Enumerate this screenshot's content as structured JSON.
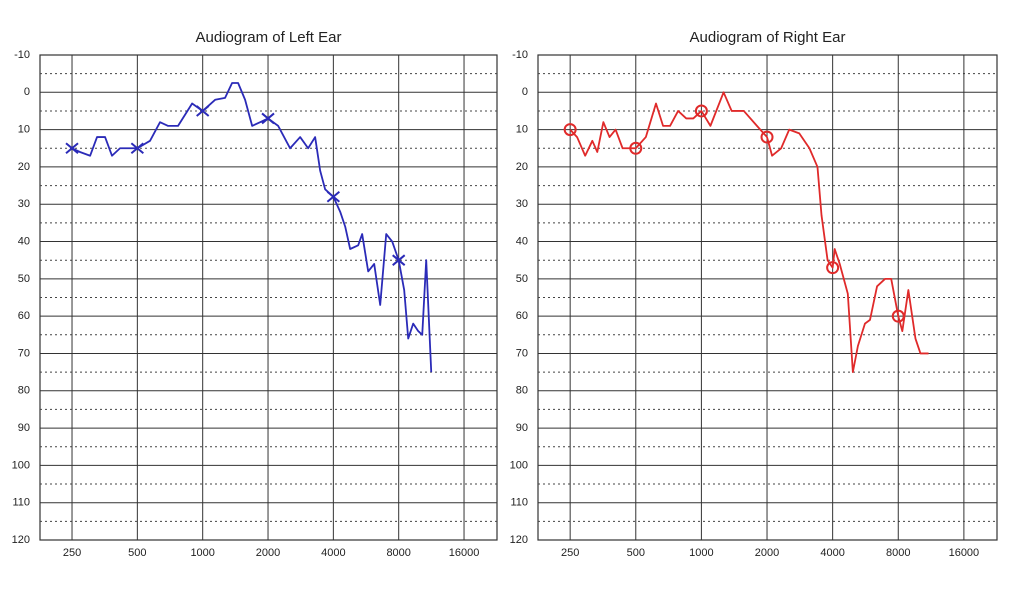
{
  "chart_data": [
    {
      "type": "line",
      "title": "Audiogram of Left Ear",
      "xscale": "log",
      "grid": true,
      "xlim": [
        178,
        22700
      ],
      "ylim": [
        120,
        -10
      ],
      "xticks": [
        250,
        500,
        1000,
        2000,
        4000,
        8000,
        16000
      ],
      "yticks": [
        -10,
        0,
        10,
        20,
        30,
        40,
        50,
        60,
        70,
        80,
        90,
        100,
        110,
        120
      ],
      "yminorticks": [
        -5,
        5,
        15,
        25,
        35,
        45,
        55,
        65,
        75,
        85,
        95,
        105,
        115
      ],
      "series": [
        {
          "color": "#2b2bb8",
          "x": [
            250,
            272,
            303,
            326,
            355,
            382,
            416,
            500,
            572,
            636,
            693,
            770,
            894,
            1000,
            1141,
            1268,
            1366,
            1456,
            1568,
            1690,
            1840,
            2000,
            2227,
            2528,
            2812,
            3061,
            3297,
            3477,
            3666,
            4000,
            4300,
            4535,
            4780,
            5205,
            5430,
            5788,
            6168,
            6575,
            7008,
            7468,
            8000,
            8480,
            8850,
            9330,
            9840,
            10270,
            10712,
            11300
          ],
          "values": [
            15,
            16,
            17,
            12,
            12,
            17,
            15,
            15,
            13,
            8,
            9,
            9,
            3,
            5,
            2,
            1.5,
            -2.5,
            -2.5,
            2,
            9,
            8,
            7,
            9,
            15,
            12,
            15,
            12,
            21,
            26,
            28,
            32,
            36,
            42,
            41,
            38,
            48,
            46,
            57,
            38,
            40,
            45,
            53,
            66,
            62,
            64,
            65,
            45,
            75
          ]
        },
        {
          "color": "#2b2bb8",
          "marker": "x",
          "x": [
            250,
            500,
            1000,
            2000,
            4000,
            8000
          ],
          "values": [
            15,
            15,
            5,
            7,
            28,
            45
          ]
        }
      ]
    },
    {
      "type": "line",
      "title": "Audiogram of Right Ear",
      "xscale": "log",
      "grid": true,
      "xlim": [
        178,
        22700
      ],
      "ylim": [
        120,
        -10
      ],
      "xticks": [
        250,
        500,
        1000,
        2000,
        4000,
        8000,
        16000
      ],
      "yticks": [
        -10,
        0,
        10,
        20,
        30,
        40,
        50,
        60,
        70,
        80,
        90,
        100,
        110,
        120
      ],
      "yminorticks": [
        -5,
        5,
        15,
        25,
        35,
        45,
        55,
        65,
        75,
        85,
        95,
        105,
        115
      ],
      "series": [
        {
          "color": "#e02a2a",
          "x": [
            250,
            269,
            293,
            316,
            333,
            355,
            379,
            404,
            435,
            500,
            556,
            619,
            667,
            718,
            782,
            852,
            918,
            1000,
            1100,
            1264,
            1377,
            1565,
            1798,
            2000,
            2110,
            2322,
            2528,
            2812,
            3130,
            3408,
            3557,
            3792,
            4000,
            4087,
            4310,
            4695,
            4952,
            5223,
            5626,
            5934,
            6395,
            6964,
            7424,
            8000,
            8350,
            8900,
            9592,
            10113,
            11018
          ],
          "values": [
            10,
            12,
            17,
            13,
            16,
            8,
            12,
            10,
            15,
            15,
            12,
            3,
            9,
            9,
            5,
            7,
            7,
            5,
            9,
            0,
            5,
            5,
            9,
            12,
            17,
            15,
            10,
            11,
            15,
            20,
            33,
            45,
            47,
            42,
            46,
            54,
            75,
            68,
            62,
            61,
            52,
            50,
            50,
            60,
            64,
            53,
            66,
            70,
            70
          ]
        },
        {
          "color": "#e02a2a",
          "marker": "o",
          "x": [
            250,
            500,
            1000,
            2000,
            4000,
            8000
          ],
          "values": [
            10,
            15,
            5,
            12,
            47,
            60
          ]
        }
      ]
    }
  ]
}
